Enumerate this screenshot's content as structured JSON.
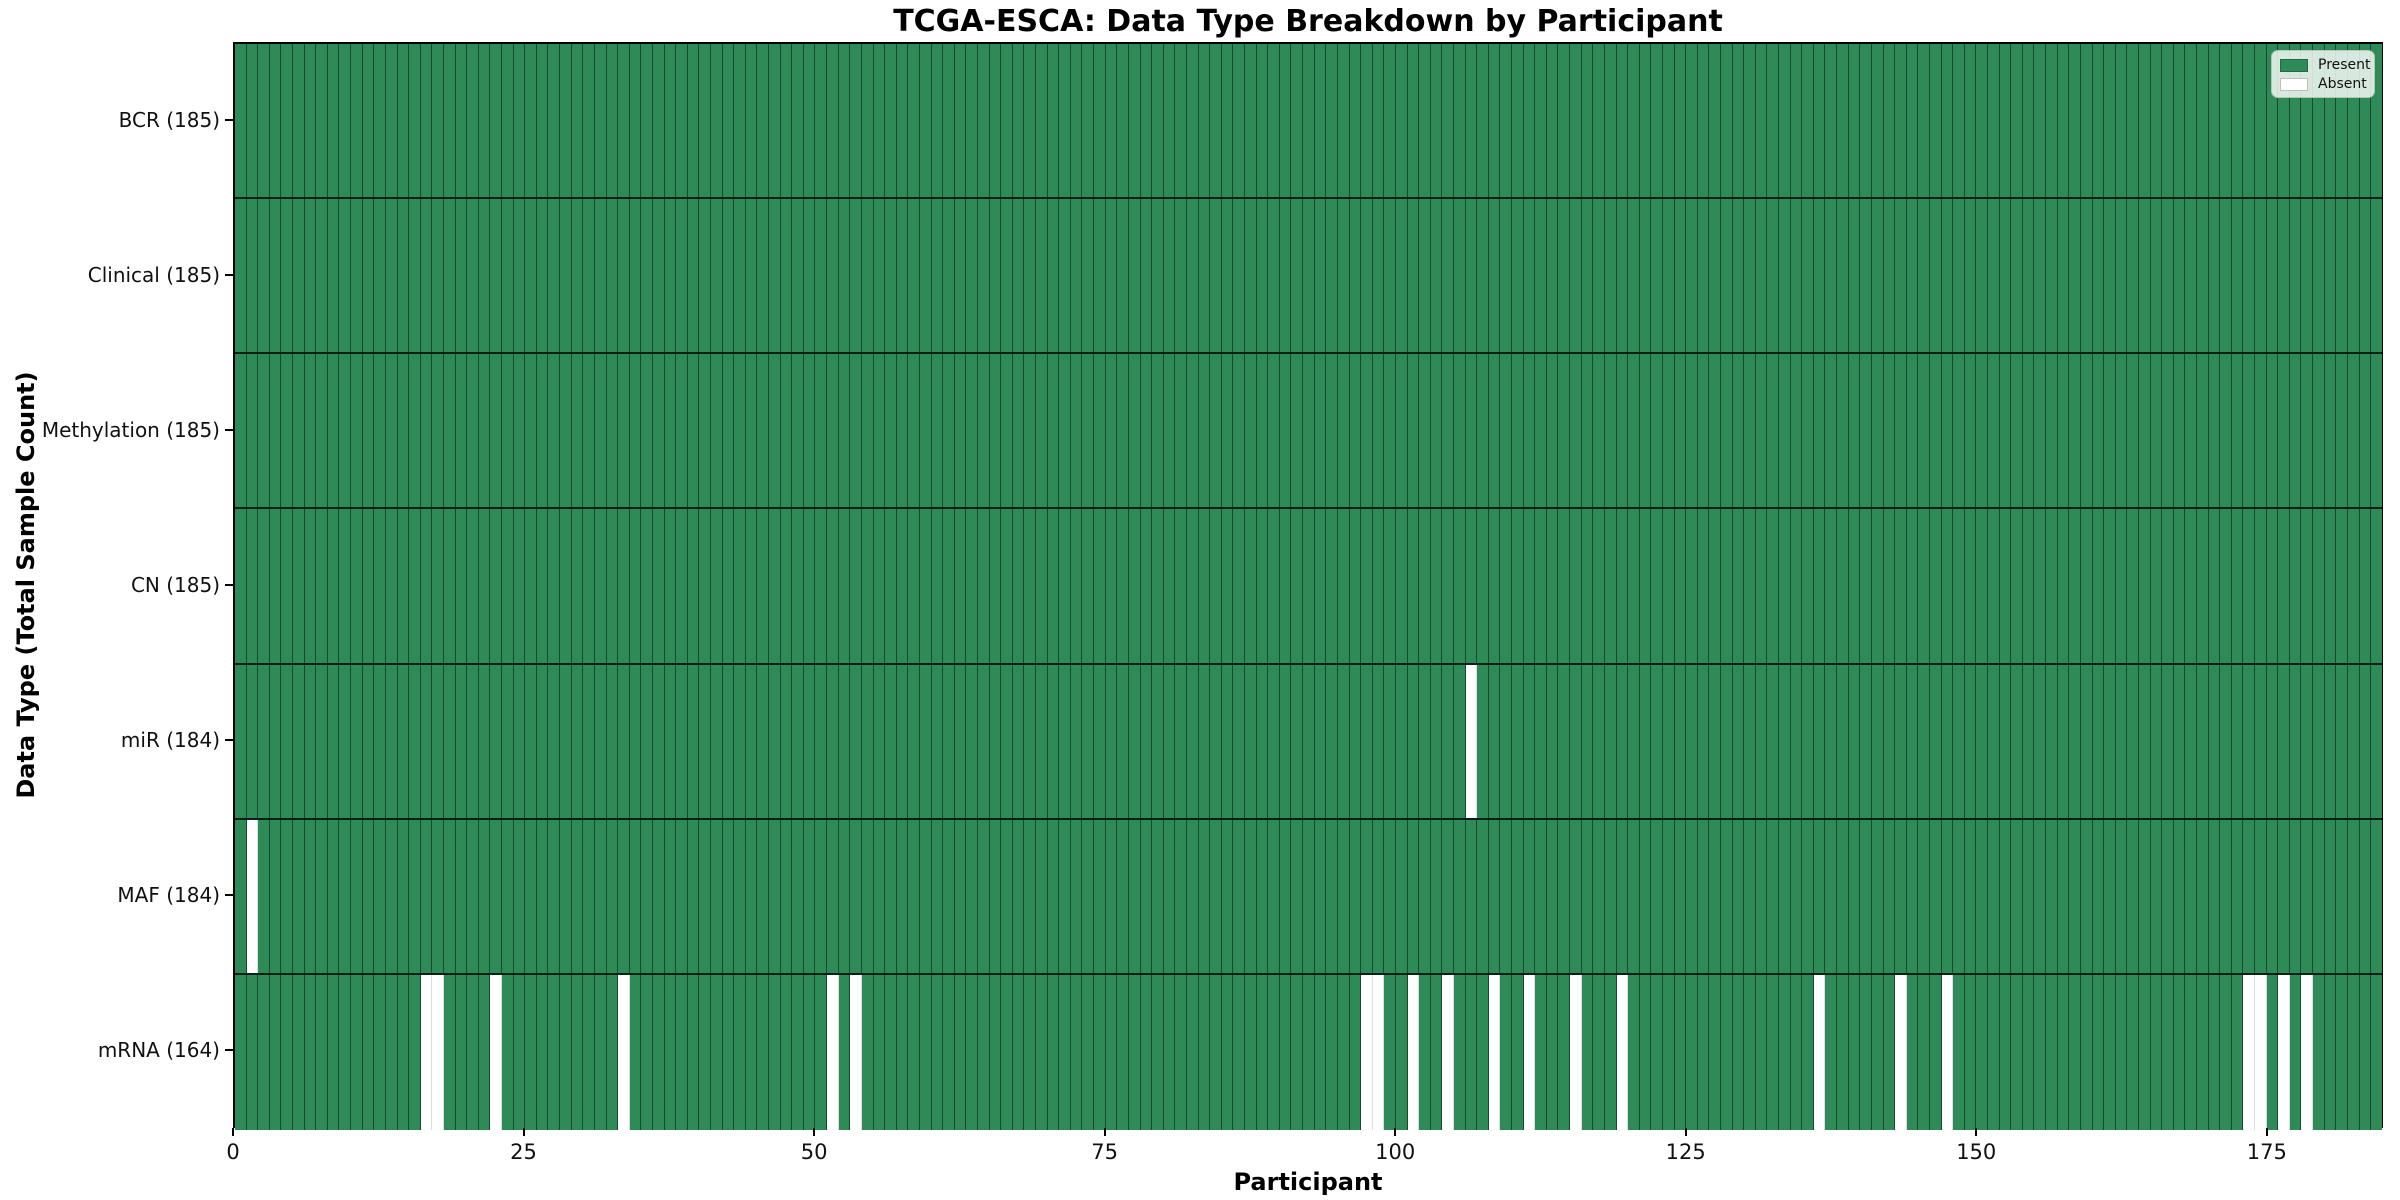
{
  "chart_data": {
    "type": "heatmap",
    "title": "TCGA-ESCA: Data Type Breakdown by Participant",
    "xlabel": "Participant",
    "ylabel": "Data Type (Total Sample Count)",
    "x_range": [
      0,
      185
    ],
    "total_participants": 185,
    "grid": false,
    "legend_position": "upper right",
    "legend": [
      {
        "label": "Present",
        "color": "#2e8b57"
      },
      {
        "label": "Absent",
        "color": "#ffffff"
      }
    ],
    "x_ticks": {
      "values": [
        0,
        25,
        50,
        75,
        100,
        125,
        150,
        175
      ],
      "labels": [
        "0",
        "25",
        "50",
        "75",
        "100",
        "125",
        "150",
        "175"
      ]
    },
    "rows": [
      {
        "name": "BCR",
        "count": 185,
        "label": "BCR (185)",
        "absent_participants": []
      },
      {
        "name": "Clinical",
        "count": 185,
        "label": "Clinical (185)",
        "absent_participants": []
      },
      {
        "name": "Methylation",
        "count": 185,
        "label": "Methylation (185)",
        "absent_participants": []
      },
      {
        "name": "CN",
        "count": 185,
        "label": "CN (185)",
        "absent_participants": []
      },
      {
        "name": "miR",
        "count": 184,
        "label": "miR (184)",
        "absent_participants": [
          106
        ]
      },
      {
        "name": "MAF",
        "count": 184,
        "label": "MAF (184)",
        "absent_participants": [
          1
        ]
      },
      {
        "name": "mRNA",
        "count": 164,
        "label": "mRNA (164)",
        "absent_participants": [
          16,
          17,
          22,
          33,
          51,
          53,
          97,
          98,
          101,
          104,
          108,
          111,
          115,
          119,
          136,
          143,
          147,
          173,
          174,
          176,
          178
        ]
      }
    ],
    "colors": {
      "present": "#2e8b57",
      "absent": "#ffffff",
      "frame": "#000000"
    }
  }
}
